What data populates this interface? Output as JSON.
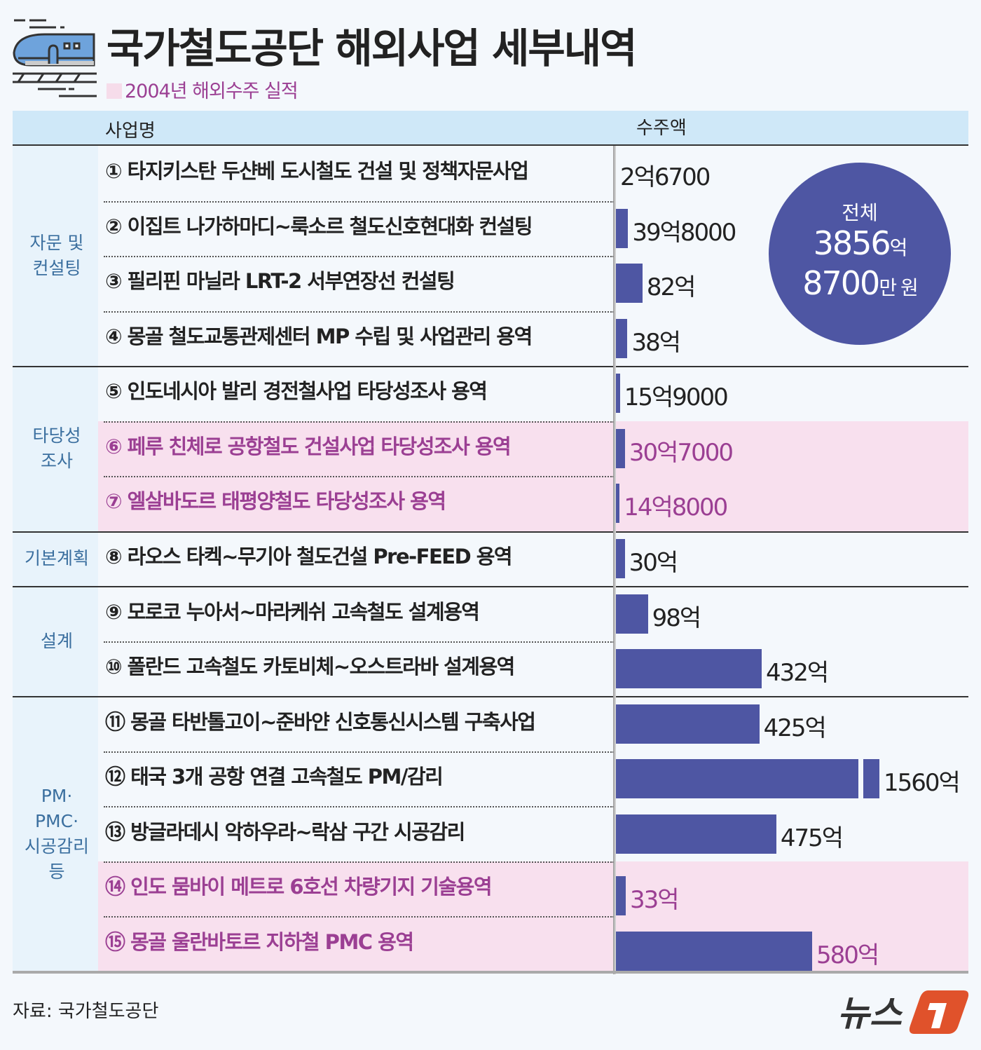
{
  "title": "국가철도공단 해외사업 세부내역",
  "subtitle": "2004년 해외수주 실적",
  "header": {
    "name_col": "사업명",
    "value_col": "수주액"
  },
  "total": {
    "label": "전체",
    "line1_num": "3856",
    "line1_unit": "억",
    "line2_num": "8700",
    "line2_unit": "만 원"
  },
  "source": "자료: 국가철도공단",
  "logo": "뉴스1",
  "colors": {
    "bar": "#4e56a3",
    "highlight": "#f8e0ee",
    "highlight_text": "#9b3f93",
    "header": "#cfe8f8"
  },
  "categories": [
    {
      "label": "자문 및\n컨설팅",
      "rows": [
        1,
        4
      ]
    },
    {
      "label": "타당성\n조사",
      "rows": [
        5,
        7
      ]
    },
    {
      "label": "기본계획",
      "rows": [
        8,
        8
      ]
    },
    {
      "label": "설계",
      "rows": [
        9,
        10
      ]
    },
    {
      "label": "PM·\nPMC·\n시공감리\n등",
      "rows": [
        11,
        15
      ]
    }
  ],
  "chart_data": {
    "type": "bar",
    "orientation": "horizontal",
    "unit": "억 원",
    "categories": [
      "① 타지키스탄 두샨베 도시철도 건설 및 정책자문사업",
      "② 이집트 나가하마디~룩소르 철도신호현대화 컨설팅",
      "③ 필리핀 마닐라 LRT-2 서부연장선 컨설팅",
      "④ 몽골 철도교통관제센터 MP 수립 및 사업관리 용역",
      "⑤ 인도네시아 발리 경전철사업 타당성조사 용역",
      "⑥ 페루 친체로 공항철도 건설사업 타당성조사 용역",
      "⑦ 엘살바도르 태평양철도 타당성조사 용역",
      "⑧ 라오스 타켁~무기아 철도건설 Pre-FEED 용역",
      "⑨ 모로코 누아서~마라케쉬 고속철도 설계용역",
      "⑩ 폴란드 고속철도 카토비체~오스트라바 설계용역",
      "⑪ 몽골 타반톨고이~준바얀 신호통신시스템 구축사업",
      "⑫ 태국 3개 공항 연결 고속철도 PM/감리",
      "⑬ 방글라데시 악하우라~락삼 구간 시공감리",
      "⑭ 인도 뭄바이 메트로 6호선 차량기지 기술용역",
      "⑮ 몽골 울란바토르 지하철 PMC 용역"
    ],
    "values": [
      2.67,
      39.8,
      82,
      38,
      15.9,
      30.7,
      14.8,
      30,
      98,
      432,
      425,
      1560,
      475,
      33,
      580
    ],
    "labels": [
      "2억6700",
      "39억8000",
      "82억",
      "38억",
      "15억9000",
      "30억7000",
      "14억8000",
      "30억",
      "98억",
      "432억",
      "425억",
      "1560억",
      "475억",
      "33억",
      "580억"
    ],
    "highlighted": [
      6,
      7,
      14,
      15
    ],
    "broken_bars": [
      12
    ]
  }
}
